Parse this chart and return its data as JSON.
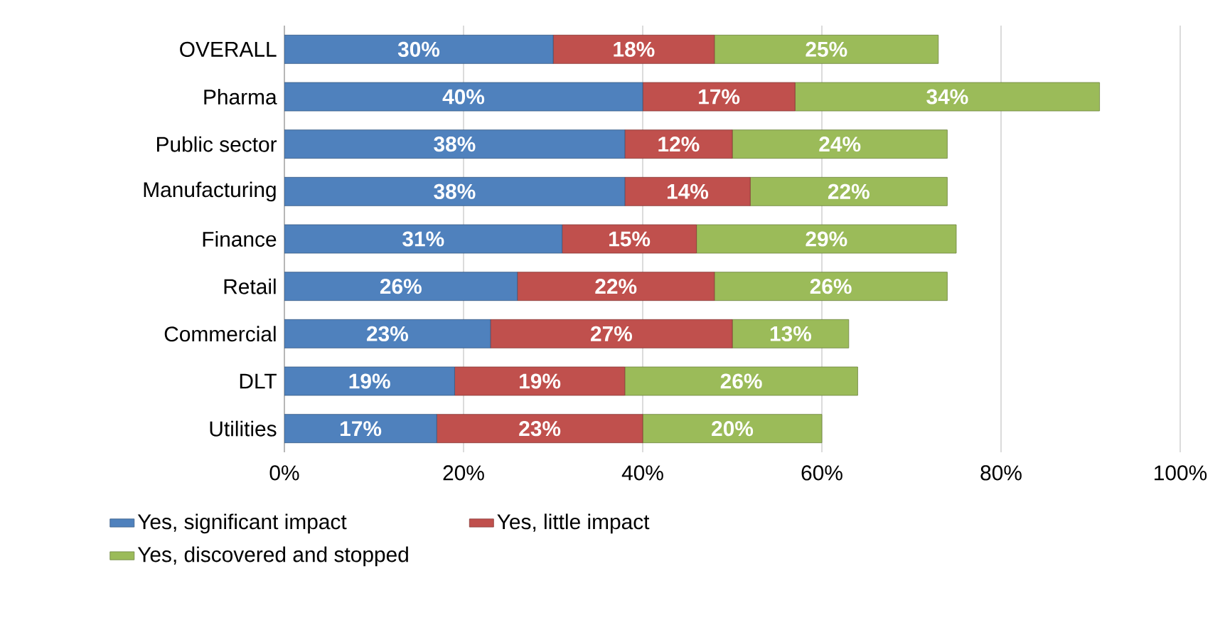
{
  "chart_data": {
    "type": "bar",
    "orientation": "horizontal",
    "stacked": true,
    "categories": [
      "OVERALL",
      "Pharma",
      "Public sector",
      "Manufacturing",
      "Finance",
      "Retail",
      "Commercial",
      "DLT",
      "Utilities"
    ],
    "series": [
      {
        "name": "Yes, significant impact",
        "color": "#4f81bd",
        "values": [
          30,
          40,
          38,
          38,
          31,
          26,
          23,
          19,
          17
        ],
        "value_labels": [
          "30%",
          "40%",
          "38%",
          "38%",
          "31%",
          "26%",
          "23%",
          "19%",
          "17%"
        ]
      },
      {
        "name": "Yes, little impact",
        "color": "#c0504d",
        "values": [
          18,
          17,
          12,
          14,
          15,
          22,
          27,
          19,
          23
        ],
        "value_labels": [
          "18%",
          "17%",
          "12%",
          "14%",
          "15%",
          "22%",
          "27%",
          "19%",
          "23%"
        ]
      },
      {
        "name": "Yes, discovered and stopped",
        "color": "#9bbb59",
        "values": [
          25,
          34,
          24,
          22,
          29,
          26,
          13,
          26,
          20
        ],
        "value_labels": [
          "25%",
          "34%",
          "24%",
          "22%",
          "29%",
          "26%",
          "13%",
          "26%",
          "20%"
        ]
      }
    ],
    "xlim": [
      0,
      100
    ],
    "xticks": [
      {
        "value": 0,
        "label": "0%"
      },
      {
        "value": 20,
        "label": "20%"
      },
      {
        "value": 40,
        "label": "40%"
      },
      {
        "value": 60,
        "label": "60%"
      },
      {
        "value": 80,
        "label": "80%"
      },
      {
        "value": 100,
        "label": "100%"
      }
    ],
    "grid": "x",
    "legend": "bottom"
  }
}
